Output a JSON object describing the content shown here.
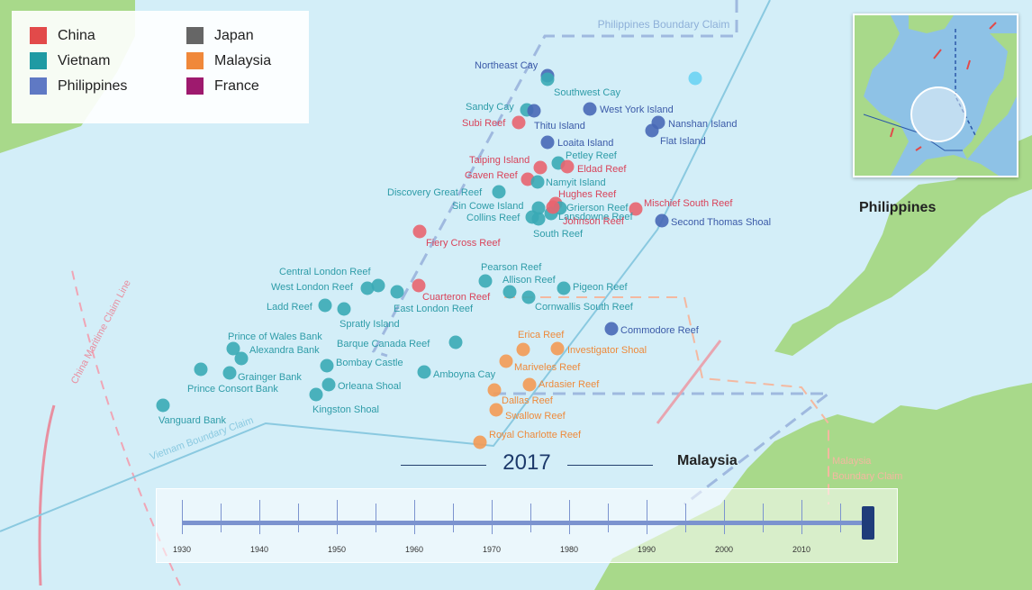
{
  "colors": {
    "China": "#e8646f",
    "Vietnam": "#3aaab5",
    "Philippines": "#4868b6",
    "Japan": "#666666",
    "Malaysia": "#f39a54",
    "France": "#a0196e",
    "water": "#d3eef8",
    "land": "#a8d98a"
  },
  "legend": [
    {
      "label": "China",
      "color": "#e24a4a"
    },
    {
      "label": "Vietnam",
      "color": "#1f9aa3"
    },
    {
      "label": "Philippines",
      "color": "#5f79c4"
    },
    {
      "label": "Japan",
      "color": "#666666"
    },
    {
      "label": "Malaysia",
      "color": "#f0883a"
    },
    {
      "label": "France",
      "color": "#9e1a6e"
    }
  ],
  "claim_labels": {
    "philippines": "Philippines Boundary Claim",
    "china": "China Maritime Claim Line",
    "vietnam": "Vietnam Boundary Claim",
    "malaysia_1": "Malaysia",
    "malaysia_2": "Boundary Claim"
  },
  "countries": {
    "philippines": "Philippines",
    "malaysia": "Malaysia"
  },
  "features": [
    {
      "name": "Northeast Cay",
      "claimant": "Philippines"
    },
    {
      "name": "Southwest Cay",
      "claimant": "Vietnam"
    },
    {
      "name": "Sandy Cay",
      "claimant": "Vietnam"
    },
    {
      "name": "Thitu Island",
      "claimant": "Philippines"
    },
    {
      "name": "Subi Reef",
      "claimant": "China"
    },
    {
      "name": "West York Island",
      "claimant": "Philippines"
    },
    {
      "name": "Nanshan Island",
      "claimant": "Philippines"
    },
    {
      "name": "Flat Island",
      "claimant": "Philippines"
    },
    {
      "name": "Loaita Island",
      "claimant": "Philippines"
    },
    {
      "name": "Taiping Island",
      "claimant": "China"
    },
    {
      "name": "Petley Reef",
      "claimant": "Vietnam"
    },
    {
      "name": "Eldad Reef",
      "claimant": "China"
    },
    {
      "name": "Gaven Reef",
      "claimant": "China"
    },
    {
      "name": "Namyit Island",
      "claimant": "Vietnam"
    },
    {
      "name": "Discovery Great Reef",
      "claimant": "Vietnam"
    },
    {
      "name": "Hughes Reef",
      "claimant": "China"
    },
    {
      "name": "Mischief South Reef",
      "claimant": "China"
    },
    {
      "name": "Sin Cowe Island",
      "claimant": "Vietnam"
    },
    {
      "name": "Grierson Reef",
      "claimant": "Vietnam"
    },
    {
      "name": "Collins Reef",
      "claimant": "Vietnam"
    },
    {
      "name": "Lansdowne Reef",
      "claimant": "Vietnam"
    },
    {
      "name": "Johnson Reef",
      "claimant": "China"
    },
    {
      "name": "Second Thomas Shoal",
      "claimant": "Philippines"
    },
    {
      "name": "South Reef",
      "claimant": "Vietnam"
    },
    {
      "name": "Fiery Cross Reef",
      "claimant": "China"
    },
    {
      "name": "Pearson Reef",
      "claimant": "Vietnam"
    },
    {
      "name": "Central London Reef",
      "claimant": "Vietnam"
    },
    {
      "name": "Allison Reef",
      "claimant": "Vietnam"
    },
    {
      "name": "West London Reef",
      "claimant": "Vietnam"
    },
    {
      "name": "Pigeon Reef",
      "claimant": "Vietnam"
    },
    {
      "name": "Cuarteron Reef",
      "claimant": "China"
    },
    {
      "name": "Ladd Reef",
      "claimant": "Vietnam"
    },
    {
      "name": "East London Reef",
      "claimant": "Vietnam"
    },
    {
      "name": "Cornwallis South Reef",
      "claimant": "Vietnam"
    },
    {
      "name": "Spratly Island",
      "claimant": "Vietnam"
    },
    {
      "name": "Commodore Reef",
      "claimant": "Philippines"
    },
    {
      "name": "Prince of Wales Bank",
      "claimant": "Vietnam"
    },
    {
      "name": "Erica Reef",
      "claimant": "Malaysia"
    },
    {
      "name": "Alexandra Bank",
      "claimant": "Vietnam"
    },
    {
      "name": "Barque Canada Reef",
      "claimant": "Vietnam"
    },
    {
      "name": "Investigator Shoal",
      "claimant": "Malaysia"
    },
    {
      "name": "Bombay Castle",
      "claimant": "Vietnam"
    },
    {
      "name": "Mariveles Reef",
      "claimant": "Malaysia"
    },
    {
      "name": "Grainger Bank",
      "claimant": "Vietnam"
    },
    {
      "name": "Amboyna Cay",
      "claimant": "Vietnam"
    },
    {
      "name": "Prince Consort Bank",
      "claimant": "Vietnam"
    },
    {
      "name": "Orleana Shoal",
      "claimant": "Vietnam"
    },
    {
      "name": "Ardasier Reef",
      "claimant": "Malaysia"
    },
    {
      "name": "Dallas Reef",
      "claimant": "Malaysia"
    },
    {
      "name": "Kingston Shoal",
      "claimant": "Vietnam"
    },
    {
      "name": "Swallow Reef",
      "claimant": "Malaysia"
    },
    {
      "name": "Vanguard Bank",
      "claimant": "Vietnam"
    },
    {
      "name": "Royal Charlotte Reef",
      "claimant": "Malaysia"
    }
  ],
  "timeline": {
    "year": "2017",
    "labels": [
      "1930",
      "1940",
      "1950",
      "1960",
      "1970",
      "1980",
      "1990",
      "2000",
      "2010"
    ],
    "min_year": 1930,
    "max_year": 2017,
    "selected_year": 2017
  }
}
